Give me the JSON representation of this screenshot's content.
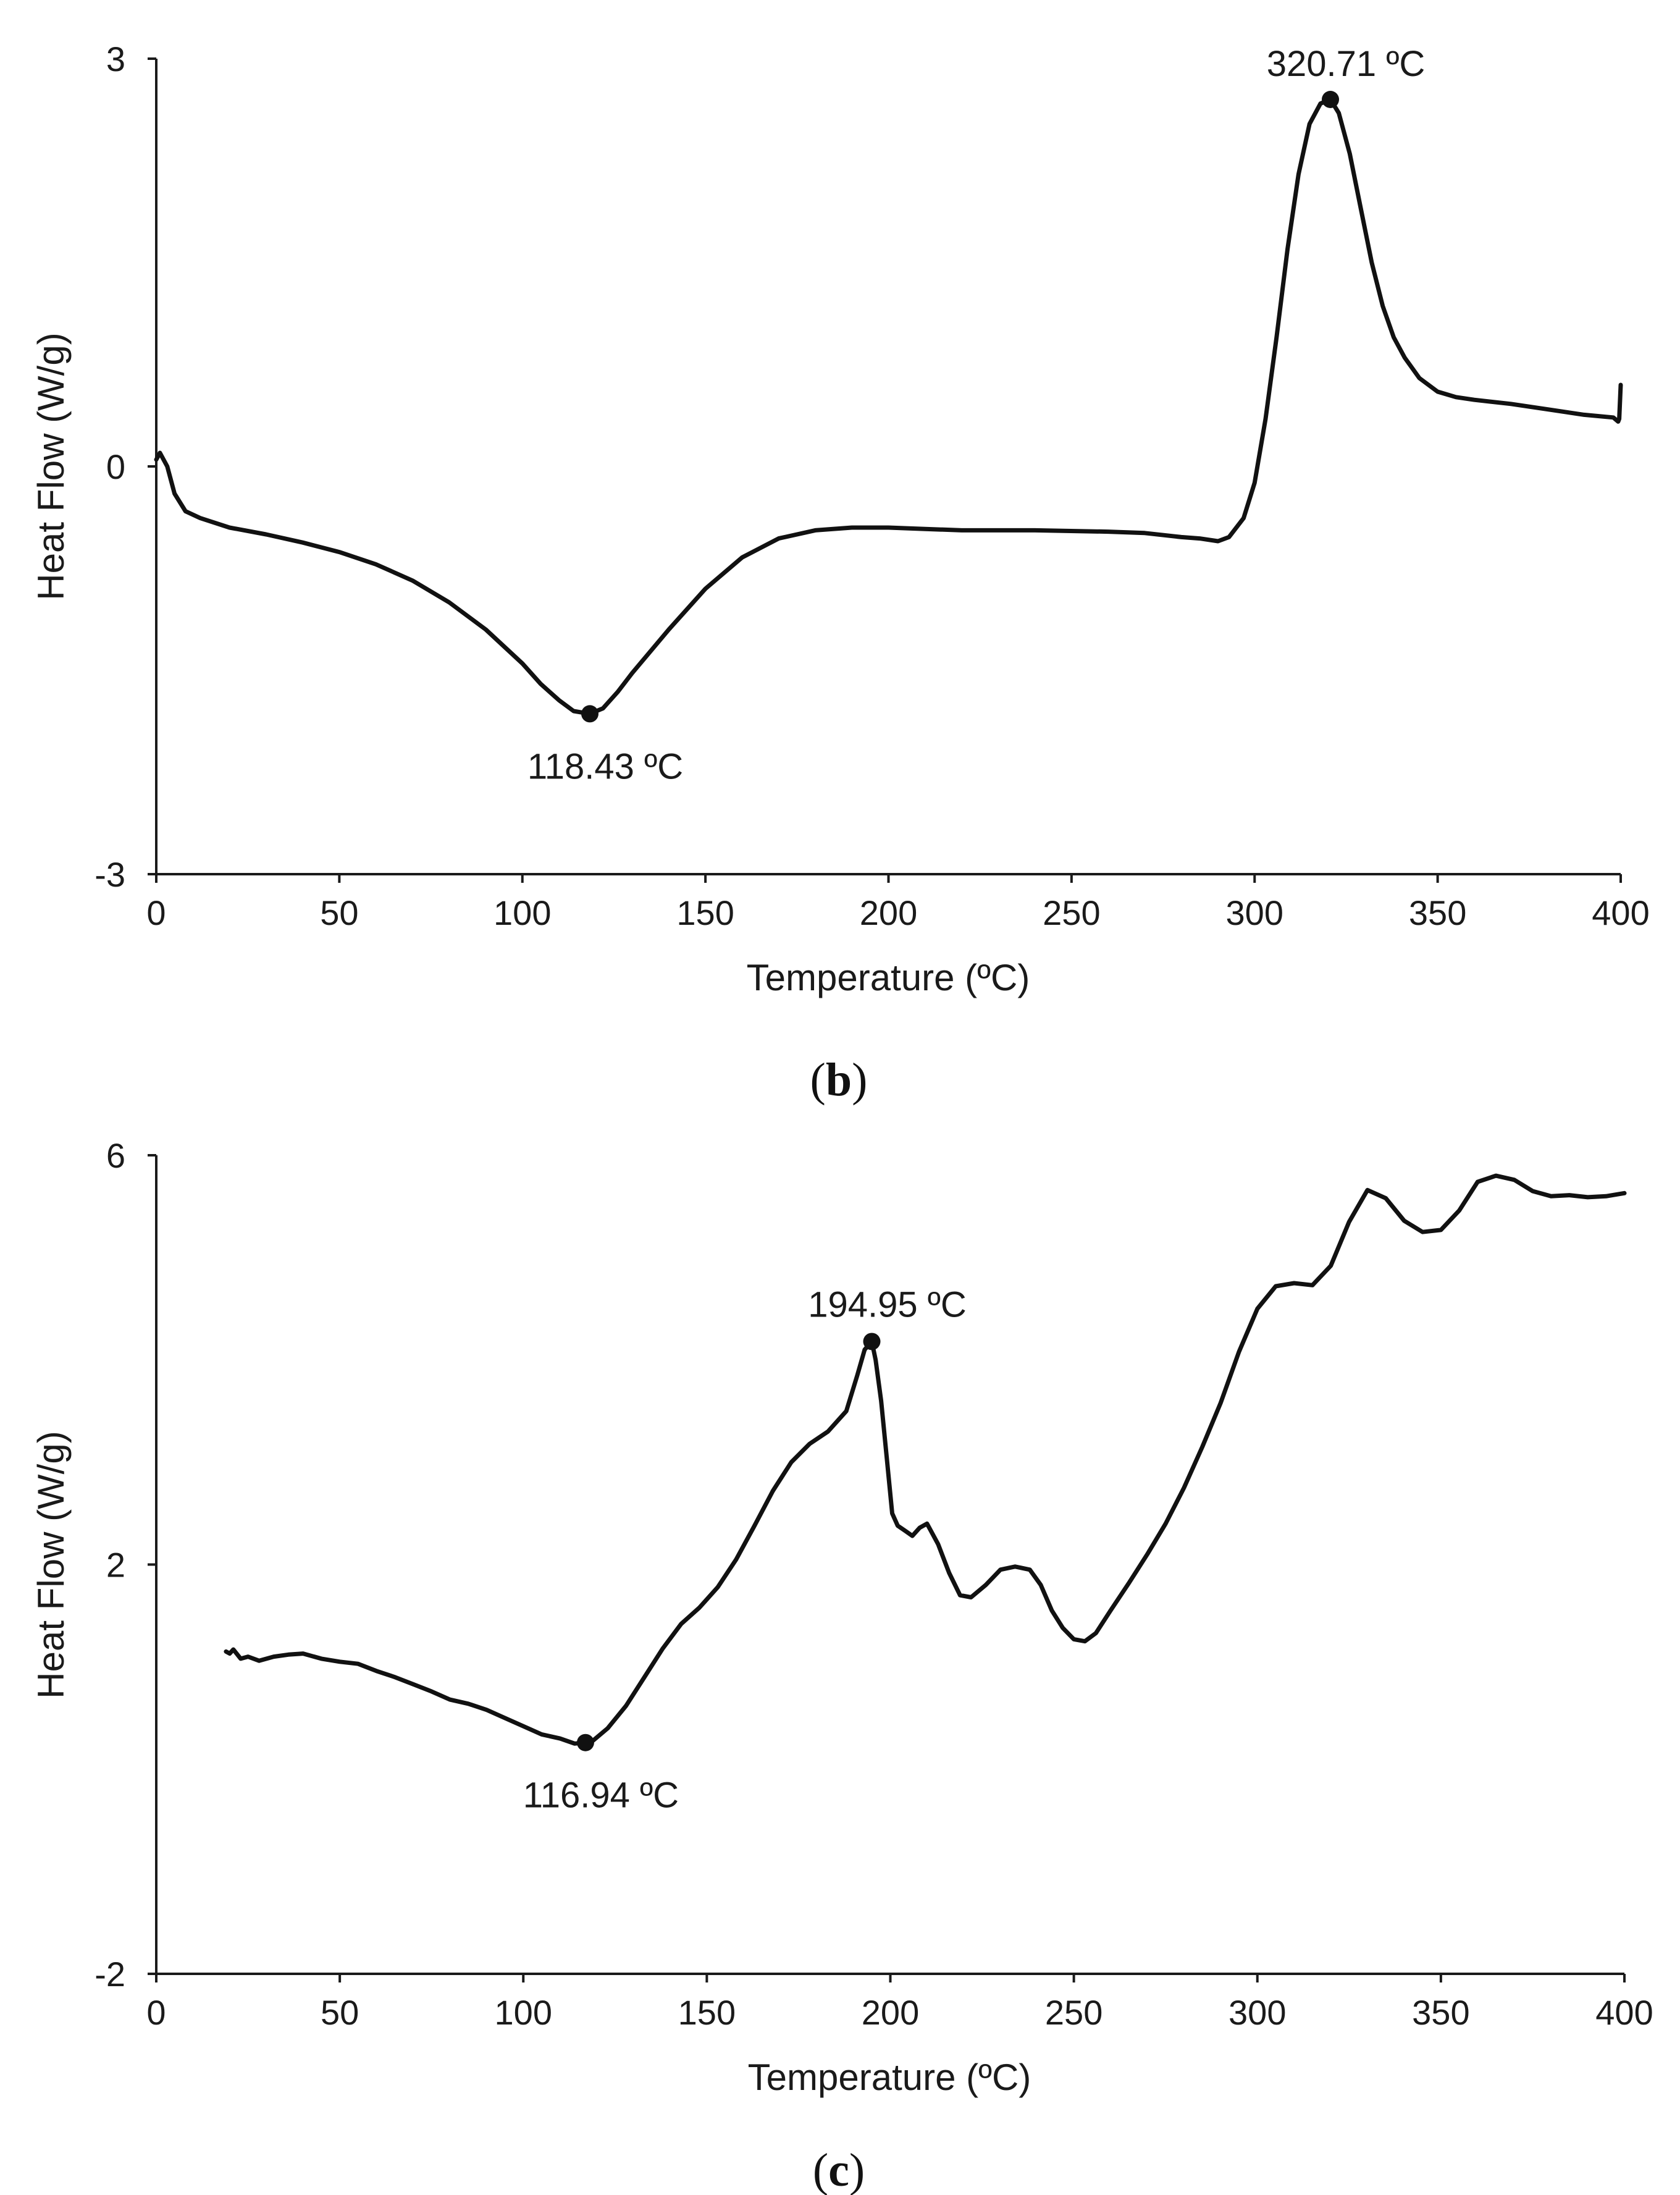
{
  "chart_data": [
    {
      "type": "line",
      "panel_label": "b",
      "xlabel": "Temperature (ºC)",
      "ylabel": "Heat Flow (W/g)",
      "xlim": [
        0,
        400
      ],
      "ylim": [
        -3,
        3
      ],
      "xticks": [
        0,
        50,
        100,
        150,
        200,
        250,
        300,
        350,
        400
      ],
      "yticks": [
        -3,
        0,
        3
      ],
      "grid": false,
      "series": [
        {
          "name": "Heat Flow",
          "x": [
            0,
            1,
            3,
            5,
            8,
            12,
            20,
            30,
            40,
            50,
            60,
            70,
            80,
            90,
            100,
            105,
            110,
            114,
            118.43,
            122,
            126,
            130,
            140,
            150,
            160,
            170,
            180,
            190,
            200,
            210,
            220,
            240,
            260,
            270,
            280,
            285,
            290,
            293,
            297,
            300,
            303,
            306,
            309,
            312,
            315,
            318,
            320.71,
            323,
            326,
            329,
            332,
            335,
            338,
            341,
            345,
            350,
            355,
            360,
            370,
            380,
            390,
            398,
            399.3,
            399.6,
            400
          ],
          "y": [
            0.05,
            0.1,
            0.0,
            -0.2,
            -0.33,
            -0.38,
            -0.45,
            -0.5,
            -0.56,
            -0.63,
            -0.72,
            -0.84,
            -1.0,
            -1.2,
            -1.45,
            -1.6,
            -1.72,
            -1.8,
            -1.82,
            -1.78,
            -1.66,
            -1.52,
            -1.2,
            -0.9,
            -0.67,
            -0.53,
            -0.47,
            -0.45,
            -0.45,
            -0.46,
            -0.47,
            -0.47,
            -0.48,
            -0.49,
            -0.52,
            -0.53,
            -0.55,
            -0.52,
            -0.38,
            -0.12,
            0.35,
            0.95,
            1.6,
            2.15,
            2.52,
            2.67,
            2.7,
            2.6,
            2.3,
            1.9,
            1.5,
            1.18,
            0.95,
            0.8,
            0.65,
            0.55,
            0.51,
            0.49,
            0.46,
            0.42,
            0.38,
            0.36,
            0.33,
            0.35,
            0.6
          ]
        }
      ],
      "annotations": [
        {
          "label": "118.43 ºC",
          "x": 118.43,
          "y": -1.82
        },
        {
          "label": "320.71 ºC",
          "x": 320.71,
          "y": 2.7
        }
      ]
    },
    {
      "type": "line",
      "panel_label": "c",
      "xlabel": "Temperature (ºC)",
      "ylabel": "Heat Flow (W/g)",
      "xlim": [
        0,
        400
      ],
      "ylim": [
        -2,
        6
      ],
      "xticks": [
        0,
        50,
        100,
        150,
        200,
        250,
        300,
        350,
        400
      ],
      "yticks": [
        -2,
        2,
        6
      ],
      "grid": false,
      "series": [
        {
          "name": "Heat Flow",
          "x": [
            19,
            20,
            21,
            23,
            25,
            28,
            32,
            36,
            40,
            45,
            50,
            55,
            60,
            65,
            70,
            75,
            80,
            85,
            90,
            95,
            100,
            105,
            110,
            114,
            116.94,
            119,
            123,
            128,
            133,
            138,
            143,
            148,
            153,
            158,
            163,
            168,
            173,
            178,
            183,
            188,
            191,
            193,
            194.95,
            196,
            197.5,
            199,
            200.5,
            202,
            204,
            206,
            208,
            210,
            213,
            216,
            219,
            222,
            226,
            230,
            234,
            238,
            241,
            244,
            247,
            250,
            253,
            256,
            260,
            265,
            270,
            275,
            280,
            285,
            290,
            295,
            300,
            305,
            310,
            315,
            320,
            325,
            330,
            335,
            340,
            345,
            350,
            355,
            360,
            365,
            370,
            375,
            380,
            385,
            390,
            395,
            400
          ],
          "y": [
            1.15,
            1.13,
            1.17,
            1.08,
            1.1,
            1.06,
            1.1,
            1.12,
            1.13,
            1.08,
            1.05,
            1.03,
            0.96,
            0.9,
            0.83,
            0.76,
            0.68,
            0.64,
            0.58,
            0.5,
            0.42,
            0.34,
            0.3,
            0.25,
            0.26,
            0.28,
            0.4,
            0.62,
            0.9,
            1.18,
            1.42,
            1.58,
            1.78,
            2.05,
            2.38,
            2.72,
            3.0,
            3.18,
            3.3,
            3.5,
            3.85,
            4.1,
            4.18,
            4.0,
            3.6,
            3.05,
            2.5,
            2.38,
            2.33,
            2.28,
            2.36,
            2.4,
            2.2,
            1.92,
            1.7,
            1.68,
            1.8,
            1.95,
            1.98,
            1.95,
            1.8,
            1.55,
            1.38,
            1.27,
            1.25,
            1.33,
            1.55,
            1.82,
            2.1,
            2.4,
            2.75,
            3.15,
            3.58,
            4.08,
            4.5,
            4.72,
            4.75,
            4.73,
            4.92,
            5.35,
            5.66,
            5.58,
            5.36,
            5.25,
            5.27,
            5.46,
            5.74,
            5.8,
            5.76,
            5.65,
            5.6,
            5.61,
            5.59,
            5.6,
            5.63
          ]
        }
      ],
      "annotations": [
        {
          "label": "116.94 ºC",
          "x": 116.94,
          "y": 0.26
        },
        {
          "label": "194.95 ºC",
          "x": 194.95,
          "y": 4.18
        }
      ]
    }
  ]
}
